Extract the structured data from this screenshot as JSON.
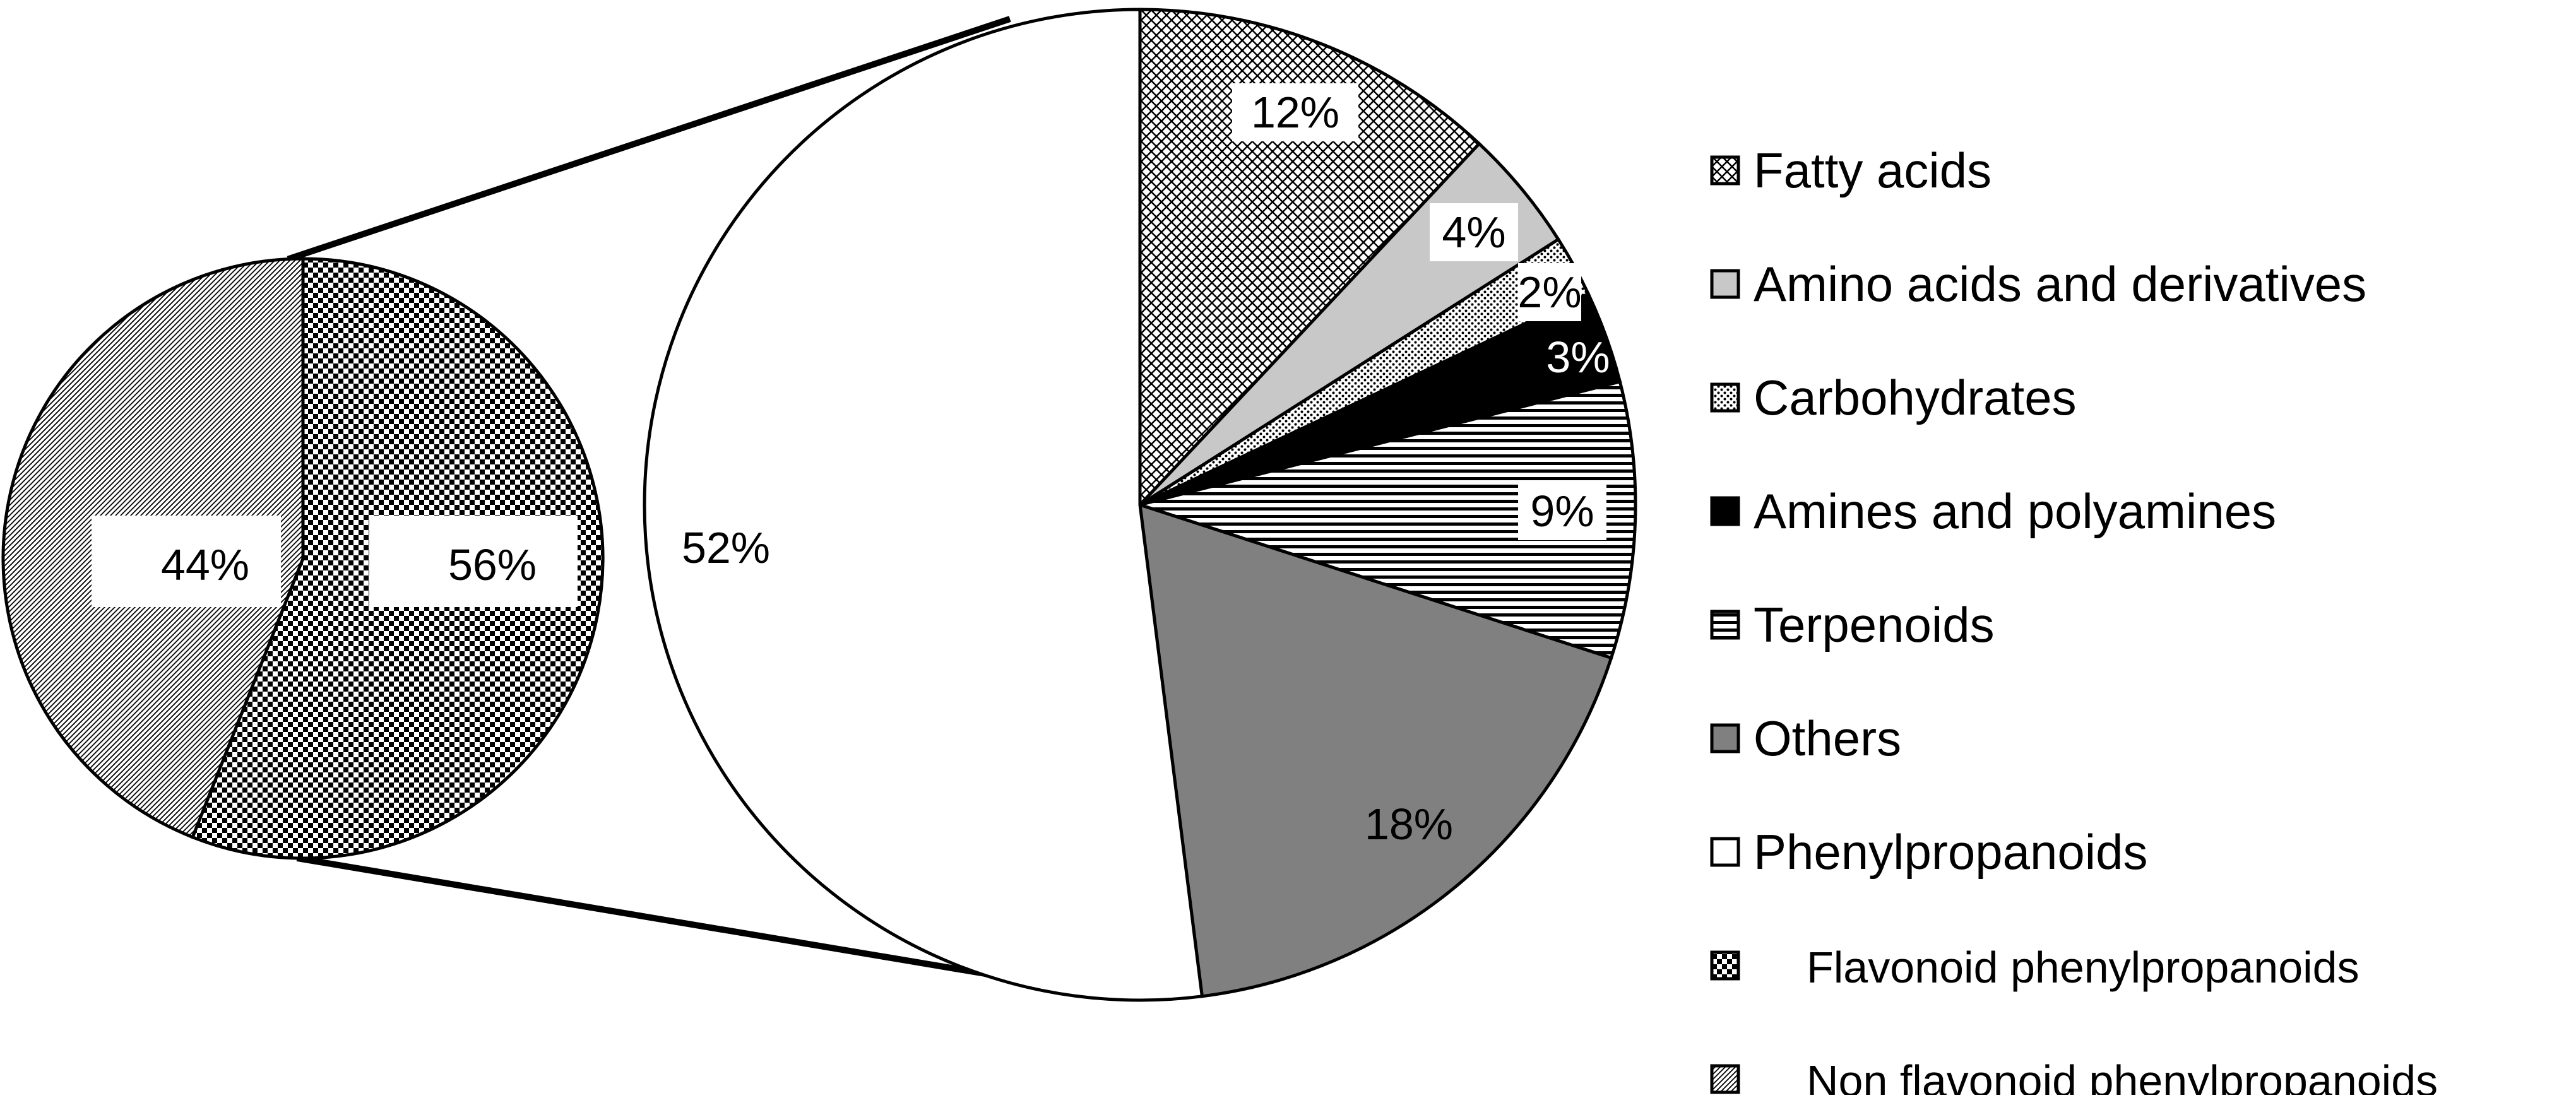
{
  "chart_data": [
    {
      "type": "pie",
      "name": "main",
      "series": [
        {
          "label": "Fatty acids",
          "value": 12,
          "text": "12%",
          "pattern": "crosshatch-fine"
        },
        {
          "label": "Amino acids and derivatives",
          "value": 4,
          "text": "4%",
          "pattern": "solid-lightgray"
        },
        {
          "label": "Carbohydrates",
          "value": 2,
          "text": "2%",
          "pattern": "dots"
        },
        {
          "label": "Amines and polyamines",
          "value": 3,
          "text": "3%",
          "pattern": "solid-black"
        },
        {
          "label": "Terpenoids",
          "value": 9,
          "text": "9%",
          "pattern": "horizontal-lines"
        },
        {
          "label": "Others",
          "value": 18,
          "text": "18%",
          "pattern": "solid-gray"
        },
        {
          "label": "Phenylpropanoids",
          "value": 52,
          "text": "52%",
          "pattern": "solid-white"
        }
      ]
    },
    {
      "type": "pie",
      "name": "phenylpropanoids-breakdown",
      "series": [
        {
          "label": "Flavonoid phenylpropanoids",
          "value": 56,
          "text": "56%",
          "pattern": "checker"
        },
        {
          "label": "Non flavonoid phenylpropanoids",
          "value": 44,
          "text": "44%",
          "pattern": "diagonal-fine"
        }
      ]
    }
  ],
  "legend": {
    "placement": "right",
    "items": [
      {
        "label": "Fatty acids",
        "pattern": "crosshatch-fine"
      },
      {
        "label": "Amino acids and derivatives",
        "pattern": "solid-lightgray"
      },
      {
        "label": "Carbohydrates",
        "pattern": "dots"
      },
      {
        "label": "Amines and polyamines",
        "pattern": "solid-black"
      },
      {
        "label": "Terpenoids",
        "pattern": "horizontal-lines"
      },
      {
        "label": "Others",
        "pattern": "solid-gray"
      },
      {
        "label": "Phenylpropanoids",
        "pattern": "solid-white"
      },
      {
        "label": "Flavonoid phenylpropanoids",
        "pattern": "checker"
      },
      {
        "label": "Non flavonoid phenylpropanoids",
        "pattern": "diagonal-fine"
      }
    ]
  },
  "colors": {
    "ink": "#000000",
    "light_gray": "#c8c8c8",
    "mid_gray": "#808080",
    "white": "#ffffff"
  }
}
